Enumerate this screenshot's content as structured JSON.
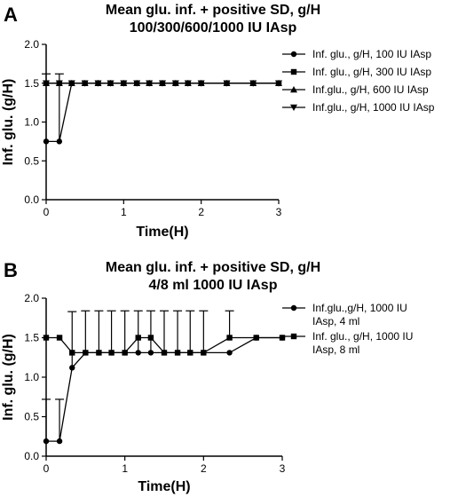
{
  "chart_data": [
    {
      "type": "line",
      "panel_label": "A",
      "title": [
        "Mean glu. inf. + positive SD, g/H",
        "100/300/600/1000 IU IAsp"
      ],
      "xlabel": "Time(H)",
      "ylabel": "Inf. glu. (g/H)",
      "xlim": [
        0,
        3
      ],
      "ylim": [
        0,
        2
      ],
      "xticks": [
        0,
        1,
        2,
        3
      ],
      "yticks": [
        "0.0",
        "0.5",
        "1.0",
        "1.5",
        "2.0"
      ],
      "legend_position": "right",
      "grid": false,
      "series": [
        {
          "name": "Inf. glu., g/H, 100 IU IAsp",
          "marker": "circle",
          "x": [
            0,
            0.17,
            0.33,
            0.5,
            0.67,
            0.83,
            1.0,
            1.17,
            1.33,
            1.5,
            1.67,
            1.83,
            2.0,
            2.33,
            2.67,
            3.0
          ],
          "y": [
            0.75,
            0.75,
            1.5,
            1.5,
            1.5,
            1.5,
            1.5,
            1.5,
            1.5,
            1.5,
            1.5,
            1.5,
            1.5,
            1.5,
            1.5,
            1.5
          ],
          "sd_plus": [
            0.87,
            0.87,
            0,
            0,
            0,
            0,
            0,
            0,
            0,
            0,
            0,
            0,
            0,
            0,
            0,
            0
          ]
        },
        {
          "name": "Inf. glu., g/H, 300 IU IAsp",
          "marker": "square",
          "x": [
            0,
            0.17,
            0.33,
            0.5,
            0.67,
            0.83,
            1.0,
            1.17,
            1.33,
            1.5,
            1.67,
            1.83,
            2.0,
            2.33,
            2.67,
            3.0
          ],
          "y": [
            1.5,
            1.5,
            1.5,
            1.5,
            1.5,
            1.5,
            1.5,
            1.5,
            1.5,
            1.5,
            1.5,
            1.5,
            1.5,
            1.5,
            1.5,
            1.5
          ],
          "sd_plus": [
            0,
            0,
            0,
            0,
            0,
            0,
            0,
            0,
            0,
            0,
            0,
            0,
            0,
            0,
            0,
            0
          ]
        },
        {
          "name": "Inf.glu., g/H, 600 IU IAsp",
          "marker": "triangle-up",
          "x": [
            0,
            0.17,
            0.33,
            0.5,
            0.67,
            0.83,
            1.0,
            1.17,
            1.33,
            1.5,
            1.67,
            1.83,
            2.0,
            2.33,
            2.67,
            3.0
          ],
          "y": [
            1.5,
            1.5,
            1.5,
            1.5,
            1.5,
            1.5,
            1.5,
            1.5,
            1.5,
            1.5,
            1.5,
            1.5,
            1.5,
            1.5,
            1.5,
            1.5
          ],
          "sd_plus": [
            0,
            0,
            0,
            0,
            0,
            0,
            0,
            0,
            0,
            0,
            0,
            0,
            0,
            0,
            0,
            0
          ]
        },
        {
          "name": "Inf.glu., g/H, 1000 IU IAsp",
          "marker": "triangle-down",
          "x": [
            0,
            0.17,
            0.33,
            0.5,
            0.67,
            0.83,
            1.0,
            1.17,
            1.33,
            1.5,
            1.67,
            1.83,
            2.0,
            2.33,
            2.67,
            3.0
          ],
          "y": [
            1.5,
            1.5,
            1.5,
            1.5,
            1.5,
            1.5,
            1.5,
            1.5,
            1.5,
            1.5,
            1.5,
            1.5,
            1.5,
            1.5,
            1.5,
            1.5
          ],
          "sd_plus": [
            0,
            0,
            0,
            0,
            0,
            0,
            0,
            0,
            0,
            0,
            0,
            0,
            0,
            0,
            0,
            0
          ]
        }
      ]
    },
    {
      "type": "line",
      "panel_label": "B",
      "title": [
        "Mean glu. inf. + positive SD, g/H",
        "4/8 ml 1000 IU IAsp"
      ],
      "xlabel": "Time(H)",
      "ylabel": "Inf. glu. (g/H)",
      "xlim": [
        0,
        3
      ],
      "ylim": [
        0,
        2
      ],
      "xticks": [
        0,
        1,
        2,
        3
      ],
      "yticks": [
        "0.0",
        "0.5",
        "1.0",
        "1.5",
        "2.0"
      ],
      "legend_position": "right",
      "grid": false,
      "series": [
        {
          "name": "Inf.glu.,g/H, 1000 IU IAsp, 4 ml",
          "marker": "circle",
          "x": [
            0,
            0.17,
            0.33,
            0.5,
            0.67,
            0.83,
            1.0,
            1.17,
            1.33,
            1.5,
            1.67,
            1.83,
            2.0,
            2.33,
            2.67,
            3.0
          ],
          "y": [
            0.19,
            0.19,
            1.12,
            1.31,
            1.31,
            1.31,
            1.31,
            1.31,
            1.31,
            1.31,
            1.31,
            1.31,
            1.31,
            1.31,
            1.5,
            1.5
          ],
          "sd_plus": [
            0.53,
            0.53,
            0.71,
            0.53,
            0.53,
            0.53,
            0.53,
            0.53,
            0.53,
            0.53,
            0.53,
            0.53,
            0.53,
            0,
            0,
            0
          ]
        },
        {
          "name": "Inf. glu., g/H, 1000 IU IAsp, 8 ml",
          "marker": "square",
          "x": [
            0,
            0.17,
            0.33,
            0.5,
            0.67,
            0.83,
            1.0,
            1.17,
            1.33,
            1.5,
            1.67,
            1.83,
            2.0,
            2.33,
            2.67,
            3.0
          ],
          "y": [
            1.5,
            1.5,
            1.31,
            1.31,
            1.31,
            1.31,
            1.31,
            1.5,
            1.5,
            1.31,
            1.31,
            1.31,
            1.31,
            1.5,
            1.5,
            1.5
          ],
          "sd_plus": [
            0,
            0,
            0,
            0,
            0,
            0,
            0,
            0,
            0,
            0,
            0,
            0,
            0,
            0.34,
            0,
            0
          ]
        }
      ]
    }
  ]
}
